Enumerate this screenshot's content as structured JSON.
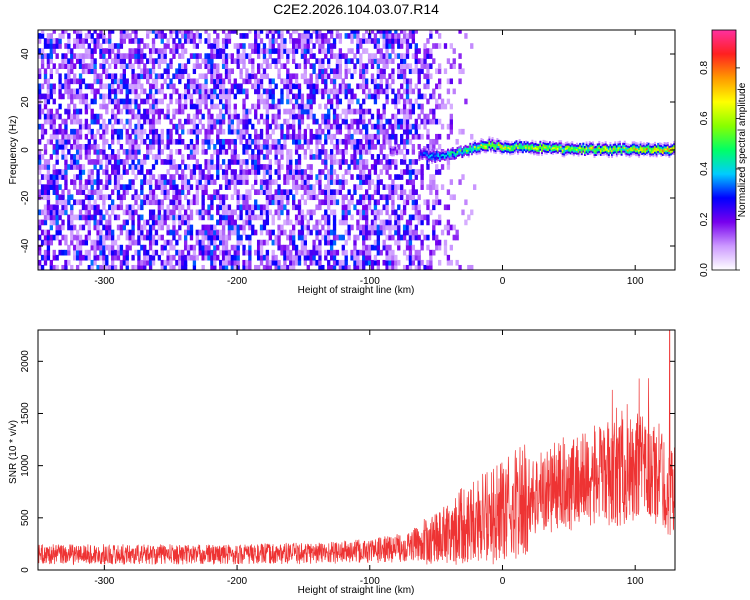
{
  "title": "C2E2.2026.104.03.07.R14",
  "chart_data": [
    {
      "type": "heatmap",
      "xlabel": "Height of straight line (km)",
      "ylabel": "Frequency (Hz)",
      "xlim": [
        -350,
        130
      ],
      "ylim": [
        -50,
        50
      ],
      "xticks": [
        -300,
        -200,
        -100,
        0,
        100
      ],
      "yticks": [
        -40,
        -20,
        0,
        20,
        40
      ],
      "noise_region_km": [
        -350,
        -30
      ],
      "signal_onset_km": -60,
      "ridge": {
        "height_km": [
          -85,
          -70,
          -60,
          -50,
          -40,
          -30,
          -20,
          -10,
          0,
          20,
          50,
          80,
          100,
          110,
          120,
          130
        ],
        "frequency_hz": [
          0,
          -2,
          -2,
          -3,
          -2,
          -1,
          1,
          2,
          1,
          1,
          0,
          0,
          0,
          0,
          0,
          0
        ],
        "amplitude": [
          0.2,
          0.15,
          0.3,
          0.4,
          0.45,
          0.5,
          0.6,
          0.65,
          0.62,
          0.6,
          0.62,
          0.64,
          0.66,
          0.7,
          0.75,
          0.7
        ]
      },
      "colorbar": {
        "label": "Normalized spectral amplitude",
        "range": [
          0,
          0.95
        ],
        "ticks": [
          "0.0",
          "0.2",
          "0.4",
          "0.6",
          "0.8"
        ],
        "tick_values": [
          0,
          0.2,
          0.4,
          0.6,
          0.8
        ],
        "colors": [
          "#ffffff",
          "#cc99ff",
          "#7700ee",
          "#0000ff",
          "#00ccff",
          "#00ff66",
          "#88ff00",
          "#ffff00",
          "#ff9900",
          "#ff2020",
          "#ff30a0"
        ]
      }
    },
    {
      "type": "line",
      "xlabel": "Height of straight line (km)",
      "ylabel": "SNR (10 * v/v)",
      "xlim": [
        -350,
        130
      ],
      "ylim": [
        0,
        2300
      ],
      "xticks": [
        -300,
        -200,
        -100,
        0,
        100
      ],
      "yticks": [
        0,
        500,
        1000,
        1500,
        2000
      ],
      "color": "#ee3333",
      "series": [
        {
          "name": "SNR",
          "x": [
            -350,
            -300,
            -250,
            -200,
            -150,
            -100,
            -80,
            -60,
            -50,
            -40,
            -30,
            -20,
            -10,
            0,
            20,
            40,
            60,
            80,
            100,
            110,
            120,
            125,
            130
          ],
          "y": [
            150,
            150,
            150,
            150,
            160,
            180,
            210,
            260,
            300,
            380,
            440,
            500,
            520,
            560,
            700,
            800,
            870,
            920,
            950,
            950,
            900,
            700,
            850
          ],
          "peak": {
            "x": 126,
            "y": 2300
          }
        }
      ]
    }
  ]
}
